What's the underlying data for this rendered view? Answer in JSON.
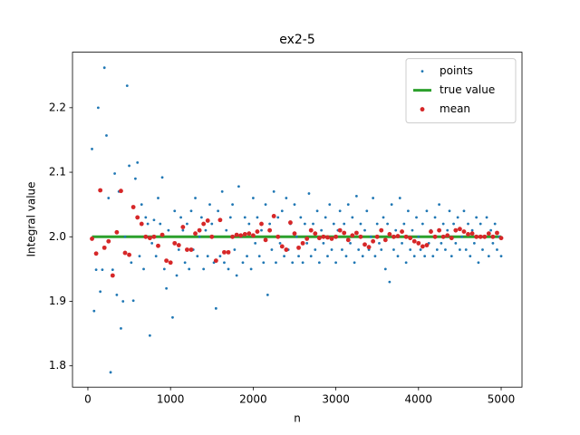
{
  "chart_data": {
    "type": "scatter",
    "title": "ex2-5",
    "xlabel": "n",
    "ylabel": "Integral value",
    "xlim": [
      -186,
      5252
    ],
    "ylim": [
      1.767,
      2.286
    ],
    "xticks": [
      0,
      1000,
      2000,
      3000,
      4000,
      5000
    ],
    "yticks": [
      1.8,
      1.9,
      {
        "value": 2,
        "label": "2.0"
      },
      2.1,
      2.2
    ],
    "grid": false,
    "legend": "upper right",
    "series": [
      {
        "name": "points",
        "type": "scatter",
        "color": "#1f77b4",
        "marker_size": 4,
        "x": [
          50,
          75,
          100,
          125,
          150,
          175,
          200,
          225,
          250,
          275,
          300,
          325,
          350,
          375,
          400,
          425,
          450,
          475,
          500,
          525,
          550,
          575,
          600,
          625,
          650,
          675,
          700,
          725,
          750,
          775,
          800,
          825,
          850,
          875,
          900,
          925,
          950,
          975,
          1000,
          1025,
          1050,
          1075,
          1100,
          1125,
          1150,
          1175,
          1200,
          1225,
          1250,
          1275,
          1300,
          1325,
          1350,
          1375,
          1400,
          1425,
          1450,
          1475,
          1500,
          1525,
          1550,
          1575,
          1600,
          1625,
          1650,
          1675,
          1700,
          1725,
          1750,
          1775,
          1800,
          1825,
          1850,
          1875,
          1900,
          1925,
          1950,
          1975,
          2000,
          2025,
          2050,
          2075,
          2100,
          2125,
          2150,
          2175,
          2200,
          2225,
          2250,
          2275,
          2300,
          2325,
          2350,
          2375,
          2400,
          2425,
          2450,
          2475,
          2500,
          2525,
          2550,
          2575,
          2600,
          2625,
          2650,
          2675,
          2700,
          2725,
          2750,
          2775,
          2800,
          2825,
          2850,
          2875,
          2900,
          2925,
          2950,
          2975,
          3000,
          3025,
          3050,
          3075,
          3100,
          3125,
          3150,
          3175,
          3200,
          3225,
          3250,
          3275,
          3300,
          3325,
          3350,
          3375,
          3400,
          3425,
          3450,
          3475,
          3500,
          3525,
          3550,
          3575,
          3600,
          3625,
          3650,
          3675,
          3700,
          3725,
          3750,
          3775,
          3800,
          3825,
          3850,
          3875,
          3900,
          3925,
          3950,
          3975,
          4000,
          4025,
          4050,
          4075,
          4100,
          4125,
          4150,
          4175,
          4200,
          4225,
          4250,
          4275,
          4300,
          4325,
          4350,
          4375,
          4400,
          4425,
          4450,
          4475,
          4500,
          4525,
          4550,
          4575,
          4600,
          4625,
          4650,
          4675,
          4700,
          4725,
          4750,
          4775,
          4800,
          4825,
          4850,
          4875,
          4900,
          4925,
          4950,
          4975,
          5000
        ],
        "values": [
          2.136,
          1.885,
          1.949,
          2.2,
          1.915,
          1.949,
          2.262,
          2.157,
          2.06,
          1.79,
          1.949,
          2.098,
          1.91,
          2.07,
          1.858,
          1.9,
          2.0,
          2.234,
          2.11,
          1.96,
          1.901,
          2.09,
          2.115,
          1.97,
          2.05,
          1.95,
          2.03,
          2.02,
          1.847,
          1.99,
          2.026,
          1.97,
          2.06,
          2.02,
          2.092,
          1.95,
          1.92,
          2.01,
          1.96,
          1.875,
          2.04,
          1.94,
          1.98,
          2.03,
          2.01,
          1.96,
          2.02,
          1.95,
          2.04,
          1.98,
          2.06,
          1.97,
          2.0,
          2.03,
          1.95,
          2.01,
          1.97,
          2.05,
          2.02,
          1.96,
          1.889,
          2.04,
          1.97,
          2.07,
          1.96,
          2.01,
          1.95,
          2.03,
          2.05,
          1.98,
          1.94,
          2.078,
          2.0,
          1.96,
          2.03,
          1.97,
          2.02,
          1.95,
          2.06,
          1.99,
          2.03,
          1.97,
          2.01,
          1.96,
          2.05,
          1.91,
          2.02,
          1.98,
          2.07,
          1.96,
          2.03,
          1.99,
          2.04,
          1.97,
          2.06,
          1.98,
          2.02,
          1.96,
          2.05,
          2.0,
          1.97,
          2.03,
          1.96,
          2.02,
          1.99,
          2.067,
          1.97,
          2.02,
          1.98,
          2.04,
          1.96,
          2.01,
          1.99,
          2.03,
          1.97,
          2.05,
          1.98,
          2.02,
          1.96,
          2.01,
          2.04,
          1.98,
          2.02,
          1.97,
          2.05,
          1.99,
          2.03,
          1.96,
          2.063,
          1.98,
          2.02,
          1.97,
          2.01,
          2.04,
          1.98,
          2.0,
          2.06,
          1.97,
          2.02,
          1.99,
          1.98,
          2.03,
          1.95,
          2.02,
          1.93,
          2.05,
          1.98,
          2.01,
          1.97,
          2.06,
          1.99,
          2.02,
          1.96,
          2.04,
          1.98,
          2.01,
          1.97,
          2.03,
          2.0,
          1.98,
          2.02,
          1.97,
          2.04,
          1.99,
          2.01,
          1.97,
          2.03,
          1.98,
          2.05,
          1.99,
          2.02,
          1.98,
          2.01,
          2.04,
          1.97,
          2.02,
          1.99,
          2.03,
          1.98,
          2.0,
          2.04,
          1.98,
          2.02,
          1.97,
          2.01,
          1.99,
          2.03,
          1.96,
          2.02,
          1.98,
          2.0,
          2.03,
          1.97,
          2.01,
          1.99,
          2.02,
          1.98,
          2.0,
          1.97
        ]
      },
      {
        "name": "true value",
        "type": "line",
        "color": "#2ca02c",
        "x": [
          50,
          5000
        ],
        "values": [
          2,
          2
        ]
      },
      {
        "name": "mean",
        "type": "scatter",
        "color": "#d62728",
        "marker_size": 12,
        "x": [
          50,
          100,
          150,
          200,
          250,
          300,
          350,
          400,
          450,
          500,
          550,
          600,
          650,
          700,
          750,
          800,
          850,
          900,
          950,
          1000,
          1050,
          1100,
          1150,
          1200,
          1250,
          1300,
          1350,
          1400,
          1450,
          1500,
          1550,
          1600,
          1650,
          1700,
          1750,
          1800,
          1850,
          1900,
          1950,
          2000,
          2050,
          2100,
          2150,
          2200,
          2250,
          2300,
          2350,
          2400,
          2450,
          2500,
          2550,
          2600,
          2650,
          2700,
          2750,
          2800,
          2850,
          2900,
          2950,
          3000,
          3050,
          3100,
          3150,
          3200,
          3250,
          3300,
          3350,
          3400,
          3450,
          3500,
          3550,
          3600,
          3650,
          3700,
          3750,
          3800,
          3850,
          3900,
          3950,
          4000,
          4050,
          4100,
          4150,
          4200,
          4250,
          4300,
          4350,
          4400,
          4450,
          4500,
          4550,
          4600,
          4650,
          4700,
          4750,
          4800,
          4850,
          4900,
          4950,
          5000
        ],
        "values": [
          1.997,
          1.974,
          2.072,
          1.983,
          1.993,
          1.94,
          2.007,
          2.071,
          1.975,
          1.972,
          2.046,
          2.03,
          2.02,
          2.0,
          1.998,
          2.0,
          1.986,
          2.003,
          1.963,
          1.96,
          1.99,
          1.987,
          2.015,
          1.98,
          1.98,
          2.005,
          2.01,
          2.02,
          2.025,
          2.0,
          1.963,
          2.026,
          1.976,
          1.976,
          2.0,
          2.003,
          2.002,
          2.004,
          2.005,
          2.002,
          2.008,
          2.02,
          1.995,
          2.01,
          2.032,
          2.0,
          1.985,
          1.98,
          2.022,
          2.005,
          1.983,
          1.99,
          1.997,
          2.01,
          2.005,
          1.998,
          2.0,
          1.999,
          1.997,
          2.0,
          2.01,
          2.006,
          1.995,
          2.002,
          2.006,
          2.0,
          1.988,
          1.984,
          1.993,
          2.0,
          2.01,
          1.995,
          2.004,
          2.0,
          2.001,
          2.008,
          2.0,
          1.998,
          1.993,
          1.99,
          1.985,
          1.987,
          2.008,
          2.0,
          2.01,
          2.0,
          2.002,
          1.998,
          2.01,
          2.012,
          2.008,
          2.004,
          2.005,
          2.0,
          2.0,
          2.0,
          2.005,
          2.0,
          2.006,
          1.998
        ]
      }
    ]
  }
}
